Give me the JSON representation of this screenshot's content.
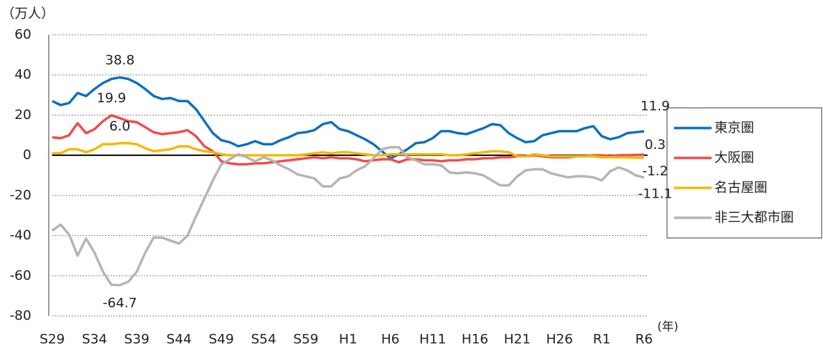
{
  "chart_data": {
    "type": "line",
    "y_axis_label": "（万人）",
    "x_axis_label": "(年)",
    "categories": [
      "S29",
      null,
      null,
      null,
      null,
      "S34",
      null,
      null,
      null,
      null,
      "S39",
      null,
      null,
      null,
      null,
      "S44",
      null,
      null,
      null,
      null,
      "S49",
      null,
      null,
      null,
      null,
      "S54",
      null,
      null,
      null,
      null,
      "S59",
      null,
      null,
      null,
      null,
      "H1",
      null,
      null,
      null,
      null,
      "H6",
      null,
      null,
      null,
      null,
      "H11",
      null,
      null,
      null,
      null,
      "H16",
      null,
      null,
      null,
      null,
      "H21",
      null,
      null,
      null,
      null,
      "H26",
      null,
      null,
      null,
      null,
      "R1",
      null,
      null,
      null,
      null,
      "R6"
    ],
    "ylim": [
      -80,
      60
    ],
    "yticks": [
      -80,
      -60,
      -40,
      -20,
      0,
      20,
      40,
      60
    ],
    "grid": true,
    "series": [
      {
        "name": "東京圏",
        "color": "#0f6fc0",
        "values": [
          27,
          25,
          26,
          31,
          29.5,
          33,
          36,
          38,
          38.8,
          38,
          36,
          33,
          29.5,
          28,
          28.5,
          27,
          27,
          23,
          17,
          11,
          7.5,
          6.5,
          4.5,
          5.5,
          7,
          5.5,
          5.5,
          7.5,
          9,
          11,
          11.5,
          12.5,
          15.5,
          16.5,
          13,
          12,
          10,
          8,
          5.5,
          2,
          -1.5,
          0.5,
          3,
          6,
          6.5,
          8.5,
          12,
          12,
          11,
          10.5,
          12,
          13.5,
          15.5,
          15,
          11,
          8.5,
          6.5,
          7,
          10,
          11,
          12,
          12,
          12,
          13.5,
          14.5,
          9.5,
          8,
          9,
          11,
          11.5,
          11.9
        ],
        "value_labels": [
          null,
          null,
          null,
          null,
          null,
          null,
          null,
          null,
          "38.8",
          null,
          null,
          null,
          null,
          null,
          null,
          null,
          null,
          null,
          null,
          null,
          null,
          null,
          null,
          null,
          null,
          null,
          null,
          null,
          null,
          null,
          null,
          null,
          null,
          null,
          null,
          null,
          null,
          null,
          null,
          null,
          null,
          null,
          null,
          null,
          null,
          null,
          null,
          null,
          null,
          null,
          null,
          null,
          null,
          null,
          null,
          null,
          null,
          null,
          null,
          null,
          null,
          null,
          null,
          null,
          null,
          null,
          null,
          null,
          null,
          null,
          "11.9"
        ]
      },
      {
        "name": "大阪圏",
        "color": "#f04b4b",
        "values": [
          9,
          8.5,
          10,
          16,
          11,
          13,
          17,
          19.9,
          18.5,
          17,
          16.5,
          14,
          11.5,
          10.5,
          11,
          11.5,
          12.5,
          9.5,
          4.5,
          2,
          -3,
          -4,
          -4.5,
          -4.5,
          -4,
          -4,
          -3.5,
          -3,
          -2.5,
          -2,
          -1.5,
          -1,
          -1.5,
          -1,
          -1.5,
          -1.5,
          -2,
          -3,
          -2.5,
          -2,
          -2,
          -3.5,
          -2,
          -2,
          -2.5,
          -2.5,
          -3,
          -2.5,
          -2.5,
          -2,
          -2,
          -1.5,
          -1.5,
          -1,
          -1,
          -0.5,
          -0.5,
          0,
          -0.5,
          -1,
          -1,
          -1,
          -0.5,
          -0.5,
          0,
          0,
          -0.5,
          0,
          0,
          0.2,
          0.3
        ],
        "value_labels": [
          null,
          null,
          null,
          null,
          null,
          null,
          null,
          "19.9",
          null,
          null,
          null,
          null,
          null,
          null,
          null,
          null,
          null,
          null,
          null,
          null,
          null,
          null,
          null,
          null,
          null,
          null,
          null,
          null,
          null,
          null,
          null,
          null,
          null,
          null,
          null,
          null,
          null,
          null,
          null,
          null,
          null,
          null,
          null,
          null,
          null,
          null,
          null,
          null,
          null,
          null,
          null,
          null,
          null,
          null,
          null,
          null,
          null,
          null,
          null,
          null,
          null,
          null,
          null,
          null,
          null,
          null,
          null,
          null,
          null,
          null,
          "0.3"
        ]
      },
      {
        "name": "名古屋圏",
        "color": "#f5b800",
        "values": [
          1,
          1,
          3,
          3,
          1.5,
          3,
          5.5,
          5.5,
          6.0,
          6,
          5.5,
          3.5,
          2,
          2.5,
          3,
          4.5,
          4.5,
          3,
          2,
          1.5,
          0.5,
          0,
          0,
          0,
          0,
          0,
          0,
          0,
          0,
          0,
          0.5,
          1,
          1.5,
          1,
          1.5,
          1.5,
          1,
          0.5,
          0,
          0,
          0.5,
          0.5,
          0.5,
          0.5,
          0.5,
          0.5,
          0.5,
          0,
          0,
          0.5,
          1,
          1.5,
          2,
          2,
          1.5,
          -0.5,
          -0.5,
          0.5,
          0,
          -0.5,
          -0.5,
          -0.5,
          -0.5,
          -0.5,
          -0.5,
          -1,
          -1,
          -1,
          -1,
          -1.2,
          -1.2
        ],
        "value_labels": [
          null,
          null,
          null,
          null,
          null,
          null,
          null,
          null,
          "6.0",
          null,
          null,
          null,
          null,
          null,
          null,
          null,
          null,
          null,
          null,
          null,
          null,
          null,
          null,
          null,
          null,
          null,
          null,
          null,
          null,
          null,
          null,
          null,
          null,
          null,
          null,
          null,
          null,
          null,
          null,
          null,
          null,
          null,
          null,
          null,
          null,
          null,
          null,
          null,
          null,
          null,
          null,
          null,
          null,
          null,
          null,
          null,
          null,
          null,
          null,
          null,
          null,
          null,
          null,
          null,
          null,
          null,
          null,
          null,
          null,
          null,
          "-1.2"
        ]
      },
      {
        "name": "非三大都市圏",
        "color": "#b4b4b4",
        "values": [
          -37.5,
          -34.5,
          -39.5,
          -50,
          -41.5,
          -48.5,
          -58,
          -64.5,
          -64.7,
          -63,
          -58,
          -48.5,
          -41,
          -41,
          -42.5,
          -44,
          -40,
          -30.5,
          -21.5,
          -12.5,
          -4.5,
          -2,
          0.5,
          -1,
          -3,
          -1,
          -2.5,
          -5,
          -7,
          -9.5,
          -10.5,
          -11.5,
          -15.5,
          -15.5,
          -11.5,
          -10.5,
          -7.5,
          -5.5,
          -1.5,
          3,
          4,
          4,
          -1,
          -2.5,
          -4.5,
          -4.5,
          -5,
          -8.5,
          -9,
          -8.5,
          -9,
          -10,
          -12.5,
          -15,
          -15,
          -10.5,
          -7.5,
          -7,
          -7,
          -9,
          -10,
          -11,
          -10.5,
          -10.5,
          -11,
          -12.5,
          -8,
          -6,
          -7.5,
          -10,
          -11.1
        ],
        "value_labels": [
          null,
          null,
          null,
          null,
          null,
          null,
          null,
          null,
          "-64.7",
          null,
          null,
          null,
          null,
          null,
          null,
          null,
          null,
          null,
          null,
          null,
          null,
          null,
          null,
          null,
          null,
          null,
          null,
          null,
          null,
          null,
          null,
          null,
          null,
          null,
          null,
          null,
          null,
          null,
          null,
          null,
          null,
          null,
          null,
          null,
          null,
          null,
          null,
          null,
          null,
          null,
          null,
          null,
          null,
          null,
          null,
          null,
          null,
          null,
          null,
          null,
          null,
          null,
          null,
          null,
          null,
          null,
          null,
          null,
          null,
          null,
          "-11.1"
        ]
      }
    ]
  }
}
